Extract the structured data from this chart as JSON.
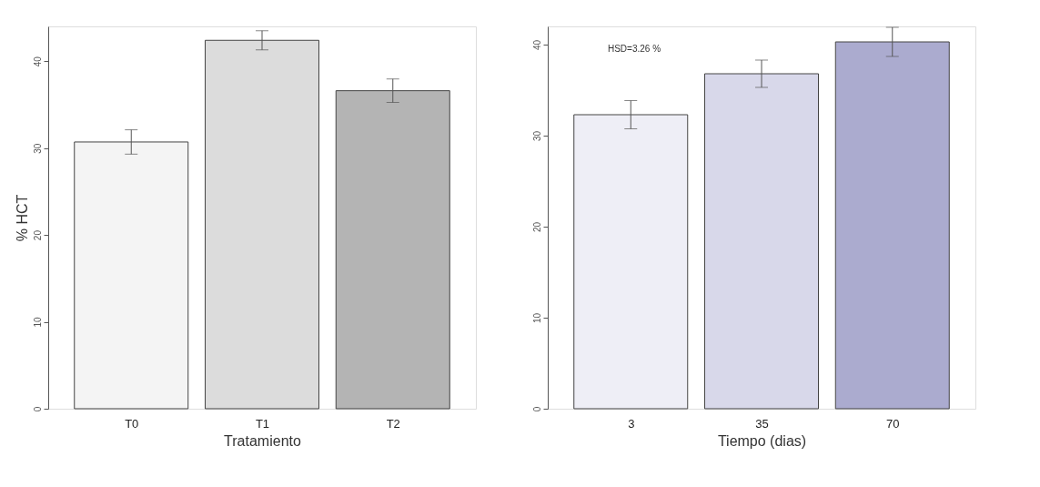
{
  "chart_data": [
    {
      "type": "bar",
      "categories": [
        "T0",
        "T1",
        "T2"
      ],
      "values": [
        30.7,
        42.4,
        36.6
      ],
      "errors": [
        1.4,
        1.1,
        1.35
      ],
      "colors": [
        "#f4f4f4",
        "#dcdcdc",
        "#b4b4b4"
      ],
      "xlabel": "Tratamiento",
      "ylabel": "% HCT",
      "ylim": [
        0,
        44
      ],
      "yticks": [
        0,
        10,
        20,
        30,
        40
      ],
      "grid": false
    },
    {
      "type": "bar",
      "categories": [
        "3",
        "35",
        "70"
      ],
      "values": [
        32.3,
        36.8,
        40.3
      ],
      "errors": [
        1.55,
        1.5,
        1.6
      ],
      "colors": [
        "#eeeef6",
        "#d8d8ea",
        "#ababcf"
      ],
      "xlabel": "Tiempo (dias)",
      "ylim": [
        0,
        42
      ],
      "yticks": [
        0,
        10,
        20,
        30,
        40
      ],
      "grid": false,
      "annotations": [
        "HSD=3.26 %"
      ]
    }
  ]
}
